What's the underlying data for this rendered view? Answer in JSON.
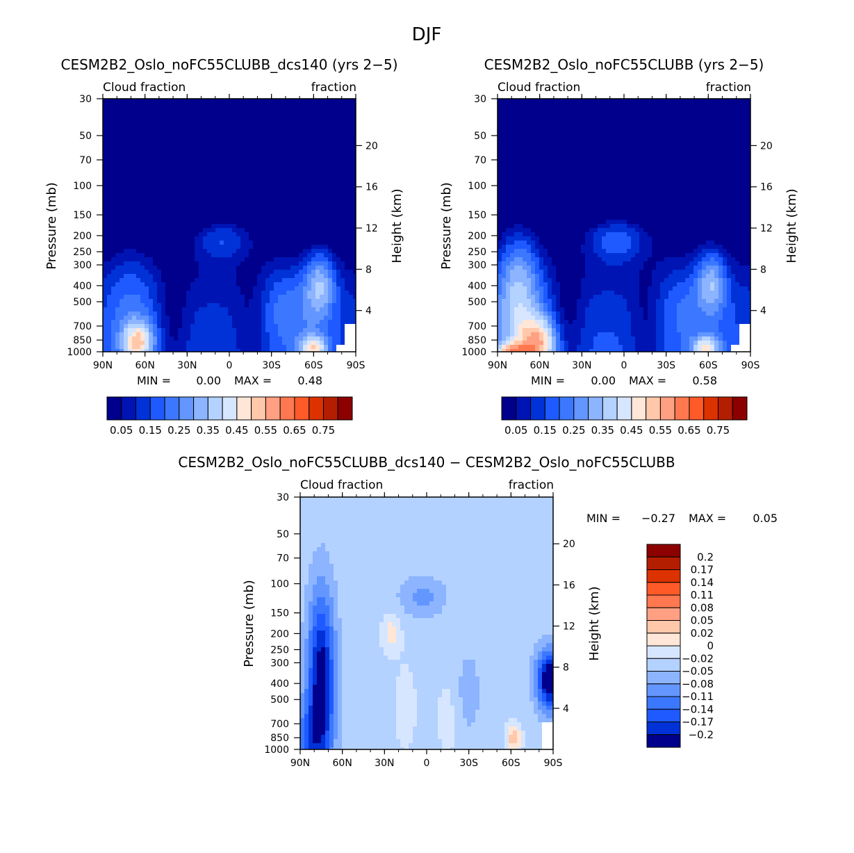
{
  "page_title": "DJF",
  "chart_data": [
    {
      "type": "heatmap",
      "id": "p1",
      "title": "CESM2B2_Oslo_noFC55CLUBB_dcs140 (yrs 2-5)",
      "left_subtitle": "Cloud fraction",
      "right_subtitle": "fraction",
      "xlabel": "",
      "ylabel": "Pressure (mb)",
      "ylabel_right": "Height (km)",
      "x_ticks": [
        "90N",
        "60N",
        "30N",
        "0",
        "30S",
        "60S",
        "90S"
      ],
      "x_values": [
        90,
        60,
        30,
        0,
        -30,
        -60,
        -90
      ],
      "y_ticks": [
        "30",
        "50",
        "70",
        "100",
        "150",
        "200",
        "250",
        "300",
        "400",
        "500",
        "700",
        "850",
        "1000"
      ],
      "y_values": [
        30,
        50,
        70,
        100,
        150,
        200,
        250,
        300,
        400,
        500,
        700,
        850,
        1000
      ],
      "ylim": [
        30,
        1000
      ],
      "height_ticks": [
        "20",
        "16",
        "12",
        "8",
        "4"
      ],
      "height_values": [
        20,
        16,
        12,
        8,
        4
      ],
      "min_label": "MIN =",
      "min_value": "0.00",
      "max_label": "MAX =",
      "max_value": "0.48",
      "colorbar_labels": [
        "0.05",
        "0.15",
        "0.25",
        "0.35",
        "0.45",
        "0.55",
        "0.65",
        "0.75"
      ],
      "colorbar_levels": [
        0.05,
        0.1,
        0.15,
        0.2,
        0.25,
        0.3,
        0.35,
        0.4,
        0.45,
        0.5,
        0.55,
        0.6,
        0.65,
        0.7,
        0.75
      ],
      "colors": [
        "#00008c",
        "#0014b4",
        "#0032d7",
        "#1e5aff",
        "#3c78ff",
        "#6496ff",
        "#8cb4ff",
        "#b4d2ff",
        "#d7e6ff",
        "#ffe6d7",
        "#ffc8aa",
        "#ffa082",
        "#ff7850",
        "#ff5a28",
        "#dc3200",
        "#b41e00",
        "#8c0000"
      ]
    },
    {
      "type": "heatmap",
      "id": "p2",
      "title": "CESM2B2_Oslo_noFC55CLUBB (yrs 2-5)",
      "left_subtitle": "Cloud fraction",
      "right_subtitle": "fraction",
      "xlabel": "",
      "ylabel": "Pressure (mb)",
      "ylabel_right": "Height (km)",
      "x_ticks": [
        "90N",
        "60N",
        "30N",
        "0",
        "30S",
        "60S",
        "90S"
      ],
      "x_values": [
        90,
        60,
        30,
        0,
        -30,
        -60,
        -90
      ],
      "y_ticks": [
        "30",
        "50",
        "70",
        "100",
        "150",
        "200",
        "250",
        "300",
        "400",
        "500",
        "700",
        "850",
        "1000"
      ],
      "y_values": [
        30,
        50,
        70,
        100,
        150,
        200,
        250,
        300,
        400,
        500,
        700,
        850,
        1000
      ],
      "ylim": [
        30,
        1000
      ],
      "height_ticks": [
        "20",
        "16",
        "12",
        "8",
        "4"
      ],
      "height_values": [
        20,
        16,
        12,
        8,
        4
      ],
      "min_label": "MIN =",
      "min_value": "0.00",
      "max_label": "MAX =",
      "max_value": "0.58",
      "colorbar_labels": [
        "0.05",
        "0.15",
        "0.25",
        "0.35",
        "0.45",
        "0.55",
        "0.65",
        "0.75"
      ],
      "colorbar_levels": [
        0.05,
        0.1,
        0.15,
        0.2,
        0.25,
        0.3,
        0.35,
        0.4,
        0.45,
        0.5,
        0.55,
        0.6,
        0.65,
        0.7,
        0.75
      ],
      "colors": [
        "#00008c",
        "#0014b4",
        "#0032d7",
        "#1e5aff",
        "#3c78ff",
        "#6496ff",
        "#8cb4ff",
        "#b4d2ff",
        "#d7e6ff",
        "#ffe6d7",
        "#ffc8aa",
        "#ffa082",
        "#ff7850",
        "#ff5a28",
        "#dc3200",
        "#b41e00",
        "#8c0000"
      ]
    },
    {
      "type": "heatmap",
      "id": "p3",
      "title": "CESM2B2_Oslo_noFC55CLUBB_dcs140 - CESM2B2_Oslo_noFC55CLUBB",
      "left_subtitle": "Cloud fraction",
      "right_subtitle": "fraction",
      "xlabel": "",
      "ylabel": "Pressure (mb)",
      "ylabel_right": "Height (km)",
      "x_ticks": [
        "90N",
        "60N",
        "30N",
        "0",
        "30S",
        "60S",
        "90S"
      ],
      "x_values": [
        90,
        60,
        30,
        0,
        -30,
        -60,
        -90
      ],
      "y_ticks": [
        "30",
        "50",
        "70",
        "100",
        "150",
        "200",
        "250",
        "300",
        "400",
        "500",
        "700",
        "850",
        "1000"
      ],
      "y_values": [
        30,
        50,
        70,
        100,
        150,
        200,
        250,
        300,
        400,
        500,
        700,
        850,
        1000
      ],
      "ylim": [
        30,
        1000
      ],
      "height_ticks": [
        "20",
        "16",
        "12",
        "8",
        "4"
      ],
      "height_values": [
        20,
        16,
        12,
        8,
        4
      ],
      "min_label": "MIN =",
      "min_value": "-0.27",
      "max_label": "MAX =",
      "max_value": "0.05",
      "colorbar_labels": [
        "0.2",
        "0.17",
        "0.14",
        "0.11",
        "0.08",
        "0.05",
        "0.02",
        "0",
        "-0.02",
        "-0.05",
        "-0.08",
        "-0.11",
        "-0.14",
        "-0.17",
        "-0.2"
      ],
      "colorbar_levels": [
        0.2,
        0.17,
        0.14,
        0.11,
        0.08,
        0.05,
        0.02,
        0,
        -0.02,
        -0.05,
        -0.08,
        -0.11,
        -0.14,
        -0.17,
        -0.2
      ],
      "colors": [
        "#8c0000",
        "#b41e00",
        "#dc3200",
        "#ff5a28",
        "#ff7850",
        "#ffa082",
        "#ffc8aa",
        "#ffe6d7",
        "#d7e6ff",
        "#b4d2ff",
        "#8cb4ff",
        "#6496ff",
        "#3c78ff",
        "#1e5aff",
        "#0032d7",
        "#00008c"
      ]
    }
  ]
}
